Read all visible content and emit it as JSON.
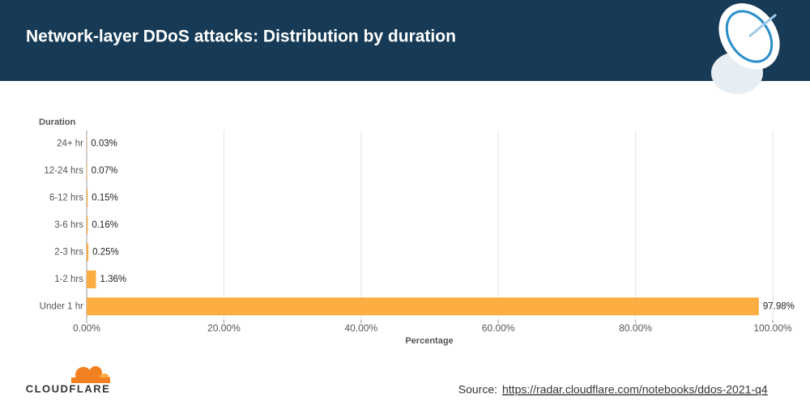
{
  "chart_data": {
    "type": "hbar",
    "title": "Network-layer DDoS attacks: Distribution by duration",
    "categories": [
      "24+ hr",
      "12-24 hrs",
      "6-12 hrs",
      "3-6 hrs",
      "2-3 hrs",
      "1-2 hrs",
      "Under 1 hr"
    ],
    "values": [
      0.03,
      0.07,
      0.15,
      0.16,
      0.25,
      1.36,
      97.98
    ],
    "value_labels": [
      "0.03%",
      "0.07%",
      "0.15%",
      "0.16%",
      "0.25%",
      "1.36%",
      "97.98%"
    ],
    "color": "#fbad41",
    "xlim": [
      0,
      100
    ],
    "xticks": [
      {
        "value": 0,
        "label": "0.00%"
      },
      {
        "value": 20,
        "label": "20.00%"
      },
      {
        "value": 40,
        "label": "40.00%"
      },
      {
        "value": 60,
        "label": "60.00%"
      },
      {
        "value": 80,
        "label": "80.00%"
      },
      {
        "value": 100,
        "label": "100.00%"
      }
    ],
    "grid": true,
    "y_label": "Duration",
    "x_label": "Percentage",
    "source_label": "Source:",
    "source_url": "https://radar.cloudflare.com/notebooks/ddos-2021-q4",
    "logo_text": "CLOUDFLARE"
  }
}
